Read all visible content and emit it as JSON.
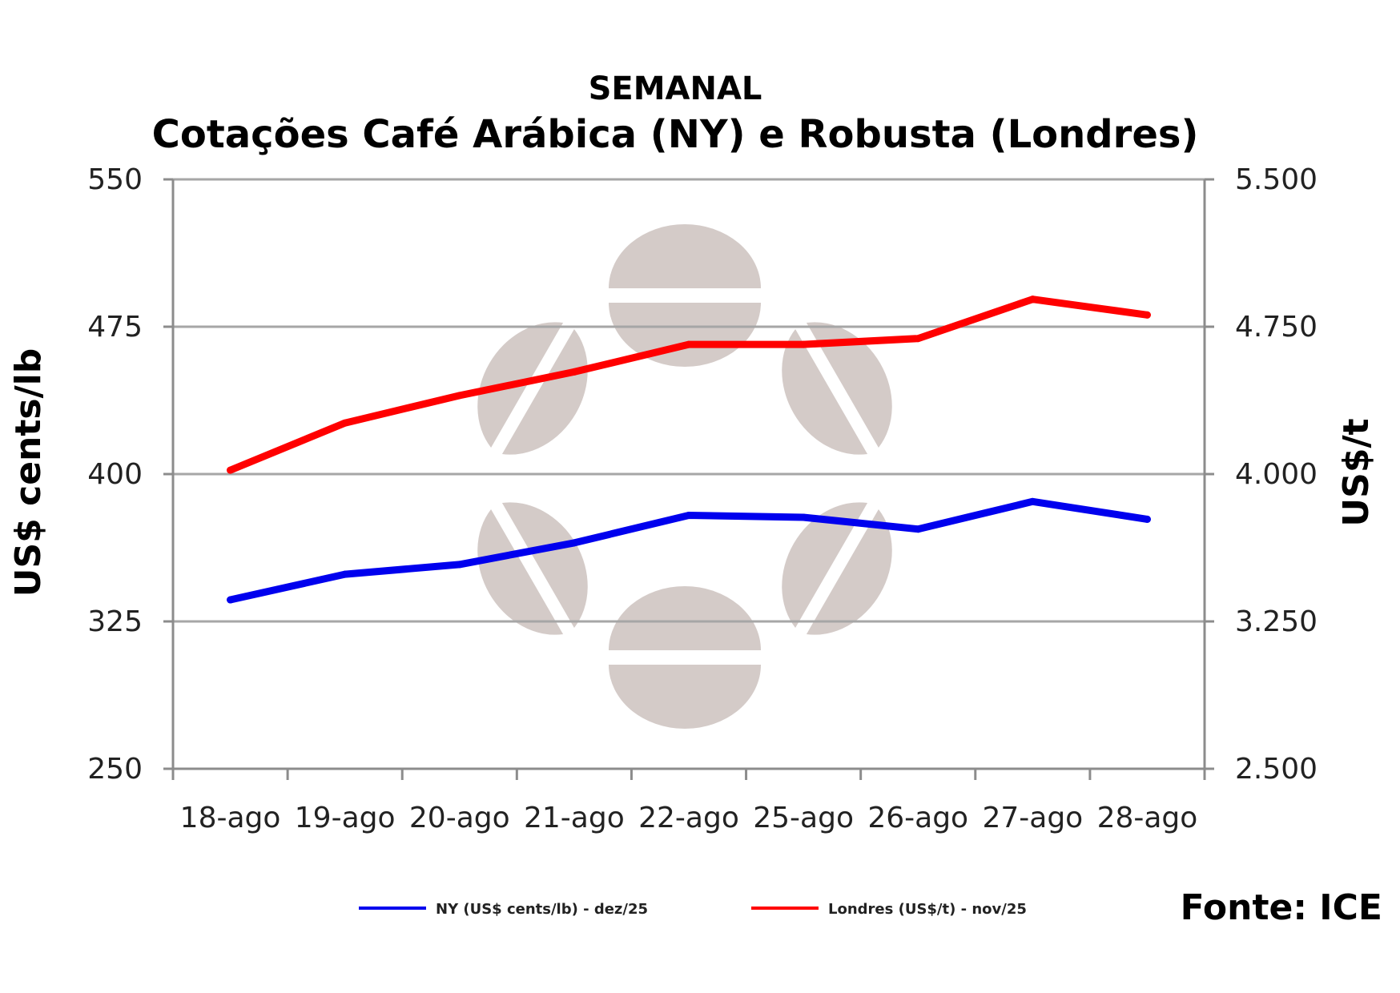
{
  "chart_data": {
    "type": "line",
    "title": "SEMANAL",
    "subtitle": "Cotações Café Arábica (NY) e Robusta (Londres)",
    "categories": [
      "18-ago",
      "19-ago",
      "20-ago",
      "21-ago",
      "22-ago",
      "25-ago",
      "26-ago",
      "27-ago",
      "28-ago"
    ],
    "y_left": {
      "label": "US$ cents/lb",
      "min": 250,
      "max": 550,
      "ticks": [
        "250",
        "325",
        "400",
        "475",
        "550"
      ],
      "tick_values": [
        250,
        325,
        400,
        475,
        550
      ]
    },
    "y_right": {
      "label": "US$/t",
      "min": 2500,
      "max": 5500,
      "ticks": [
        "2.500",
        "3.250",
        "4.000",
        "4.750",
        "5.500"
      ],
      "tick_values": [
        2500,
        3250,
        4000,
        4750,
        5500
      ]
    },
    "grid": true,
    "legend_position": "bottom",
    "series": [
      {
        "name": "NY (US$ cents/lb) - dez/25",
        "axis": "left",
        "color": "#0000ee",
        "values": [
          336,
          349,
          354,
          365,
          379,
          378,
          372,
          386,
          377
        ]
      },
      {
        "name": "Londres (US$/t) - nov/25",
        "axis": "right",
        "color": "#ff0000",
        "values": [
          4020,
          4260,
          4400,
          4520,
          4660,
          4660,
          4690,
          4890,
          4810
        ]
      }
    ],
    "source": "Fonte: ICE"
  }
}
